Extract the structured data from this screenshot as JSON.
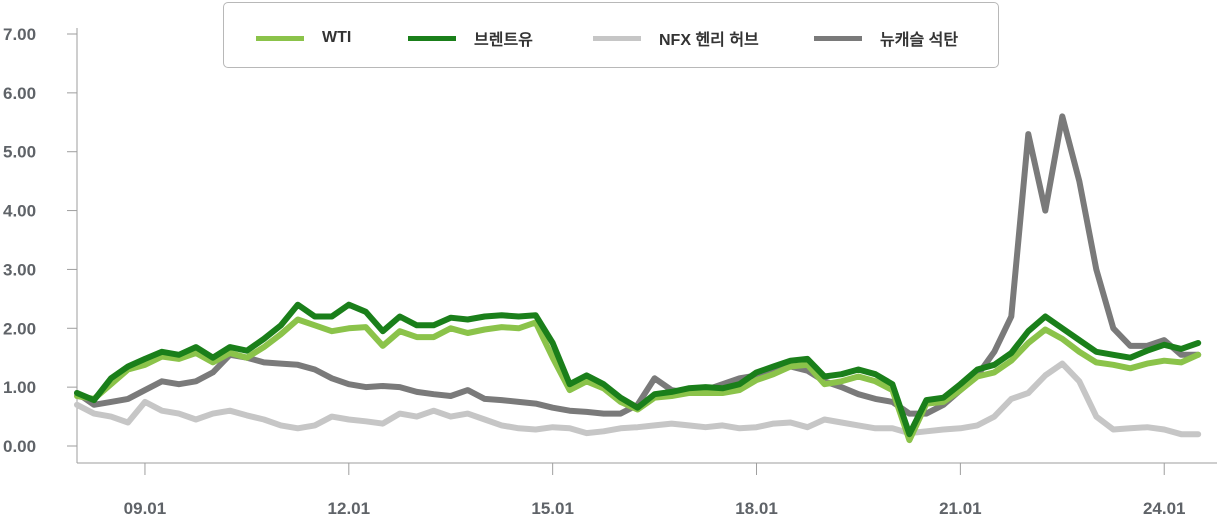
{
  "chart_data": {
    "type": "line",
    "title": "",
    "xlabel": "",
    "ylabel": "",
    "ylim": [
      0,
      7
    ],
    "yticks": [
      "0.00",
      "1.00",
      "2.00",
      "3.00",
      "4.00",
      "5.00",
      "6.00",
      "7.00"
    ],
    "xticks": [
      "09.01",
      "12.01",
      "15.01",
      "18.01",
      "21.01",
      "24.01"
    ],
    "x_unit": "year",
    "x_range": [
      2008.0,
      2024.6
    ],
    "xtick_positions": [
      2009,
      2012,
      2015,
      2018,
      2021,
      2024
    ],
    "legend_position": "top",
    "grid": false,
    "x": [
      2008.0,
      2008.25,
      2008.5,
      2008.75,
      2009.0,
      2009.25,
      2009.5,
      2009.75,
      2010.0,
      2010.25,
      2010.5,
      2010.75,
      2011.0,
      2011.25,
      2011.5,
      2011.75,
      2012.0,
      2012.25,
      2012.5,
      2012.75,
      2013.0,
      2013.25,
      2013.5,
      2013.75,
      2014.0,
      2014.25,
      2014.5,
      2014.75,
      2015.0,
      2015.25,
      2015.5,
      2015.75,
      2016.0,
      2016.25,
      2016.5,
      2016.75,
      2017.0,
      2017.25,
      2017.5,
      2017.75,
      2018.0,
      2018.25,
      2018.5,
      2018.75,
      2019.0,
      2019.25,
      2019.5,
      2019.75,
      2020.0,
      2020.25,
      2020.5,
      2020.75,
      2021.0,
      2021.25,
      2021.5,
      2021.75,
      2022.0,
      2022.25,
      2022.5,
      2022.75,
      2023.0,
      2023.25,
      2023.5,
      2023.75,
      2024.0,
      2024.25,
      2024.5
    ],
    "series": [
      {
        "name": "WTI",
        "color": "#8bc34a",
        "width": 6,
        "values": [
          0.85,
          0.8,
          1.05,
          1.3,
          1.38,
          1.52,
          1.48,
          1.58,
          1.42,
          1.58,
          1.5,
          1.68,
          1.9,
          2.15,
          2.05,
          1.95,
          2.0,
          2.02,
          1.7,
          1.95,
          1.85,
          1.85,
          2.0,
          1.92,
          1.98,
          2.02,
          2.0,
          2.1,
          1.5,
          0.95,
          1.1,
          0.98,
          0.75,
          0.62,
          0.82,
          0.85,
          0.9,
          0.9,
          0.9,
          0.95,
          1.12,
          1.22,
          1.35,
          1.38,
          1.05,
          1.1,
          1.18,
          1.1,
          0.95,
          0.1,
          0.72,
          0.75,
          0.95,
          1.18,
          1.25,
          1.45,
          1.75,
          1.98,
          1.82,
          1.6,
          1.42,
          1.38,
          1.32,
          1.4,
          1.45,
          1.42,
          1.55
        ]
      },
      {
        "name": "브렌트유",
        "color": "#1a7f1a",
        "width": 6,
        "values": [
          0.9,
          0.78,
          1.15,
          1.35,
          1.48,
          1.6,
          1.55,
          1.68,
          1.5,
          1.68,
          1.62,
          1.82,
          2.05,
          2.4,
          2.2,
          2.2,
          2.4,
          2.28,
          1.95,
          2.2,
          2.05,
          2.05,
          2.18,
          2.15,
          2.2,
          2.22,
          2.2,
          2.22,
          1.75,
          1.05,
          1.2,
          1.05,
          0.82,
          0.65,
          0.88,
          0.92,
          0.98,
          1.0,
          0.98,
          1.05,
          1.25,
          1.35,
          1.45,
          1.48,
          1.18,
          1.22,
          1.3,
          1.22,
          1.05,
          0.2,
          0.78,
          0.82,
          1.05,
          1.3,
          1.38,
          1.58,
          1.95,
          2.2,
          2.0,
          1.8,
          1.6,
          1.55,
          1.5,
          1.62,
          1.72,
          1.65,
          1.75
        ]
      },
      {
        "name": "NFX 헨리 허브",
        "color": "#c6c6c6",
        "width": 6,
        "values": [
          0.7,
          0.55,
          0.5,
          0.4,
          0.75,
          0.6,
          0.55,
          0.45,
          0.55,
          0.6,
          0.52,
          0.45,
          0.35,
          0.3,
          0.35,
          0.5,
          0.45,
          0.42,
          0.38,
          0.55,
          0.5,
          0.6,
          0.5,
          0.55,
          0.45,
          0.35,
          0.3,
          0.28,
          0.32,
          0.3,
          0.22,
          0.25,
          0.3,
          0.32,
          0.35,
          0.38,
          0.35,
          0.32,
          0.35,
          0.3,
          0.32,
          0.38,
          0.4,
          0.32,
          0.45,
          0.4,
          0.35,
          0.3,
          0.3,
          0.22,
          0.25,
          0.28,
          0.3,
          0.35,
          0.5,
          0.8,
          0.9,
          1.2,
          1.4,
          1.1,
          0.5,
          0.28,
          0.3,
          0.32,
          0.28,
          0.2,
          0.2
        ]
      },
      {
        "name": "뉴캐슬 석탄",
        "color": "#7a7a7a",
        "width": 6,
        "values": [
          0.9,
          0.7,
          0.75,
          0.8,
          0.95,
          1.1,
          1.05,
          1.1,
          1.25,
          1.55,
          1.5,
          1.42,
          1.4,
          1.38,
          1.3,
          1.15,
          1.05,
          1.0,
          1.02,
          1.0,
          0.92,
          0.88,
          0.85,
          0.95,
          0.8,
          0.78,
          0.75,
          0.72,
          0.65,
          0.6,
          0.58,
          0.55,
          0.55,
          0.7,
          1.15,
          0.95,
          0.9,
          0.95,
          1.05,
          1.15,
          1.2,
          1.3,
          1.35,
          1.28,
          1.1,
          1.0,
          0.88,
          0.8,
          0.75,
          0.55,
          0.55,
          0.7,
          0.95,
          1.2,
          1.6,
          2.2,
          5.3,
          4.0,
          5.6,
          4.5,
          3.0,
          2.0,
          1.7,
          1.7,
          1.8,
          1.55,
          1.55
        ]
      }
    ]
  }
}
